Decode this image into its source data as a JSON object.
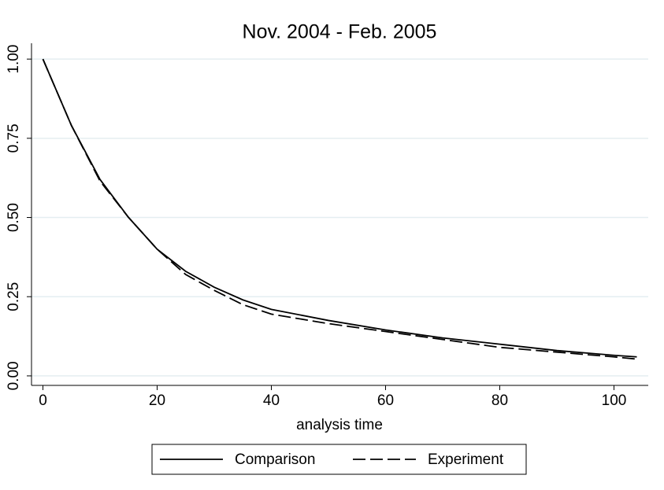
{
  "chart_data": {
    "type": "line",
    "title": "Nov. 2004 - Feb. 2005",
    "x_label": "analysis time",
    "x": [
      0,
      5,
      10,
      15,
      20,
      25,
      30,
      35,
      40,
      50,
      60,
      70,
      80,
      90,
      100,
      104
    ],
    "series": [
      {
        "name": "Comparison",
        "color": "#000000",
        "linestyle": "solid",
        "values": [
          1.0,
          0.79,
          0.62,
          0.5,
          0.4,
          0.33,
          0.28,
          0.24,
          0.21,
          0.175,
          0.145,
          0.12,
          0.1,
          0.08,
          0.065,
          0.06
        ]
      },
      {
        "name": "Experiment",
        "color": "#000000",
        "linestyle": "dashed",
        "values": [
          1.0,
          0.79,
          0.615,
          0.5,
          0.4,
          0.32,
          0.27,
          0.225,
          0.195,
          0.165,
          0.14,
          0.115,
          0.09,
          0.075,
          0.06,
          0.053
        ]
      }
    ],
    "xlim": [
      -2,
      106
    ],
    "ylim": [
      -0.03,
      1.05
    ],
    "xticks": [
      0,
      20,
      40,
      60,
      80,
      100
    ],
    "yticks": [
      {
        "value": 0,
        "label": "0.00"
      },
      {
        "value": 0.25,
        "label": "0.25"
      },
      {
        "value": 0.5,
        "label": "0.50"
      },
      {
        "value": 0.75,
        "label": "0.75"
      },
      {
        "value": 1,
        "label": "1.00"
      }
    ],
    "grid": true,
    "legend": "bottom"
  }
}
